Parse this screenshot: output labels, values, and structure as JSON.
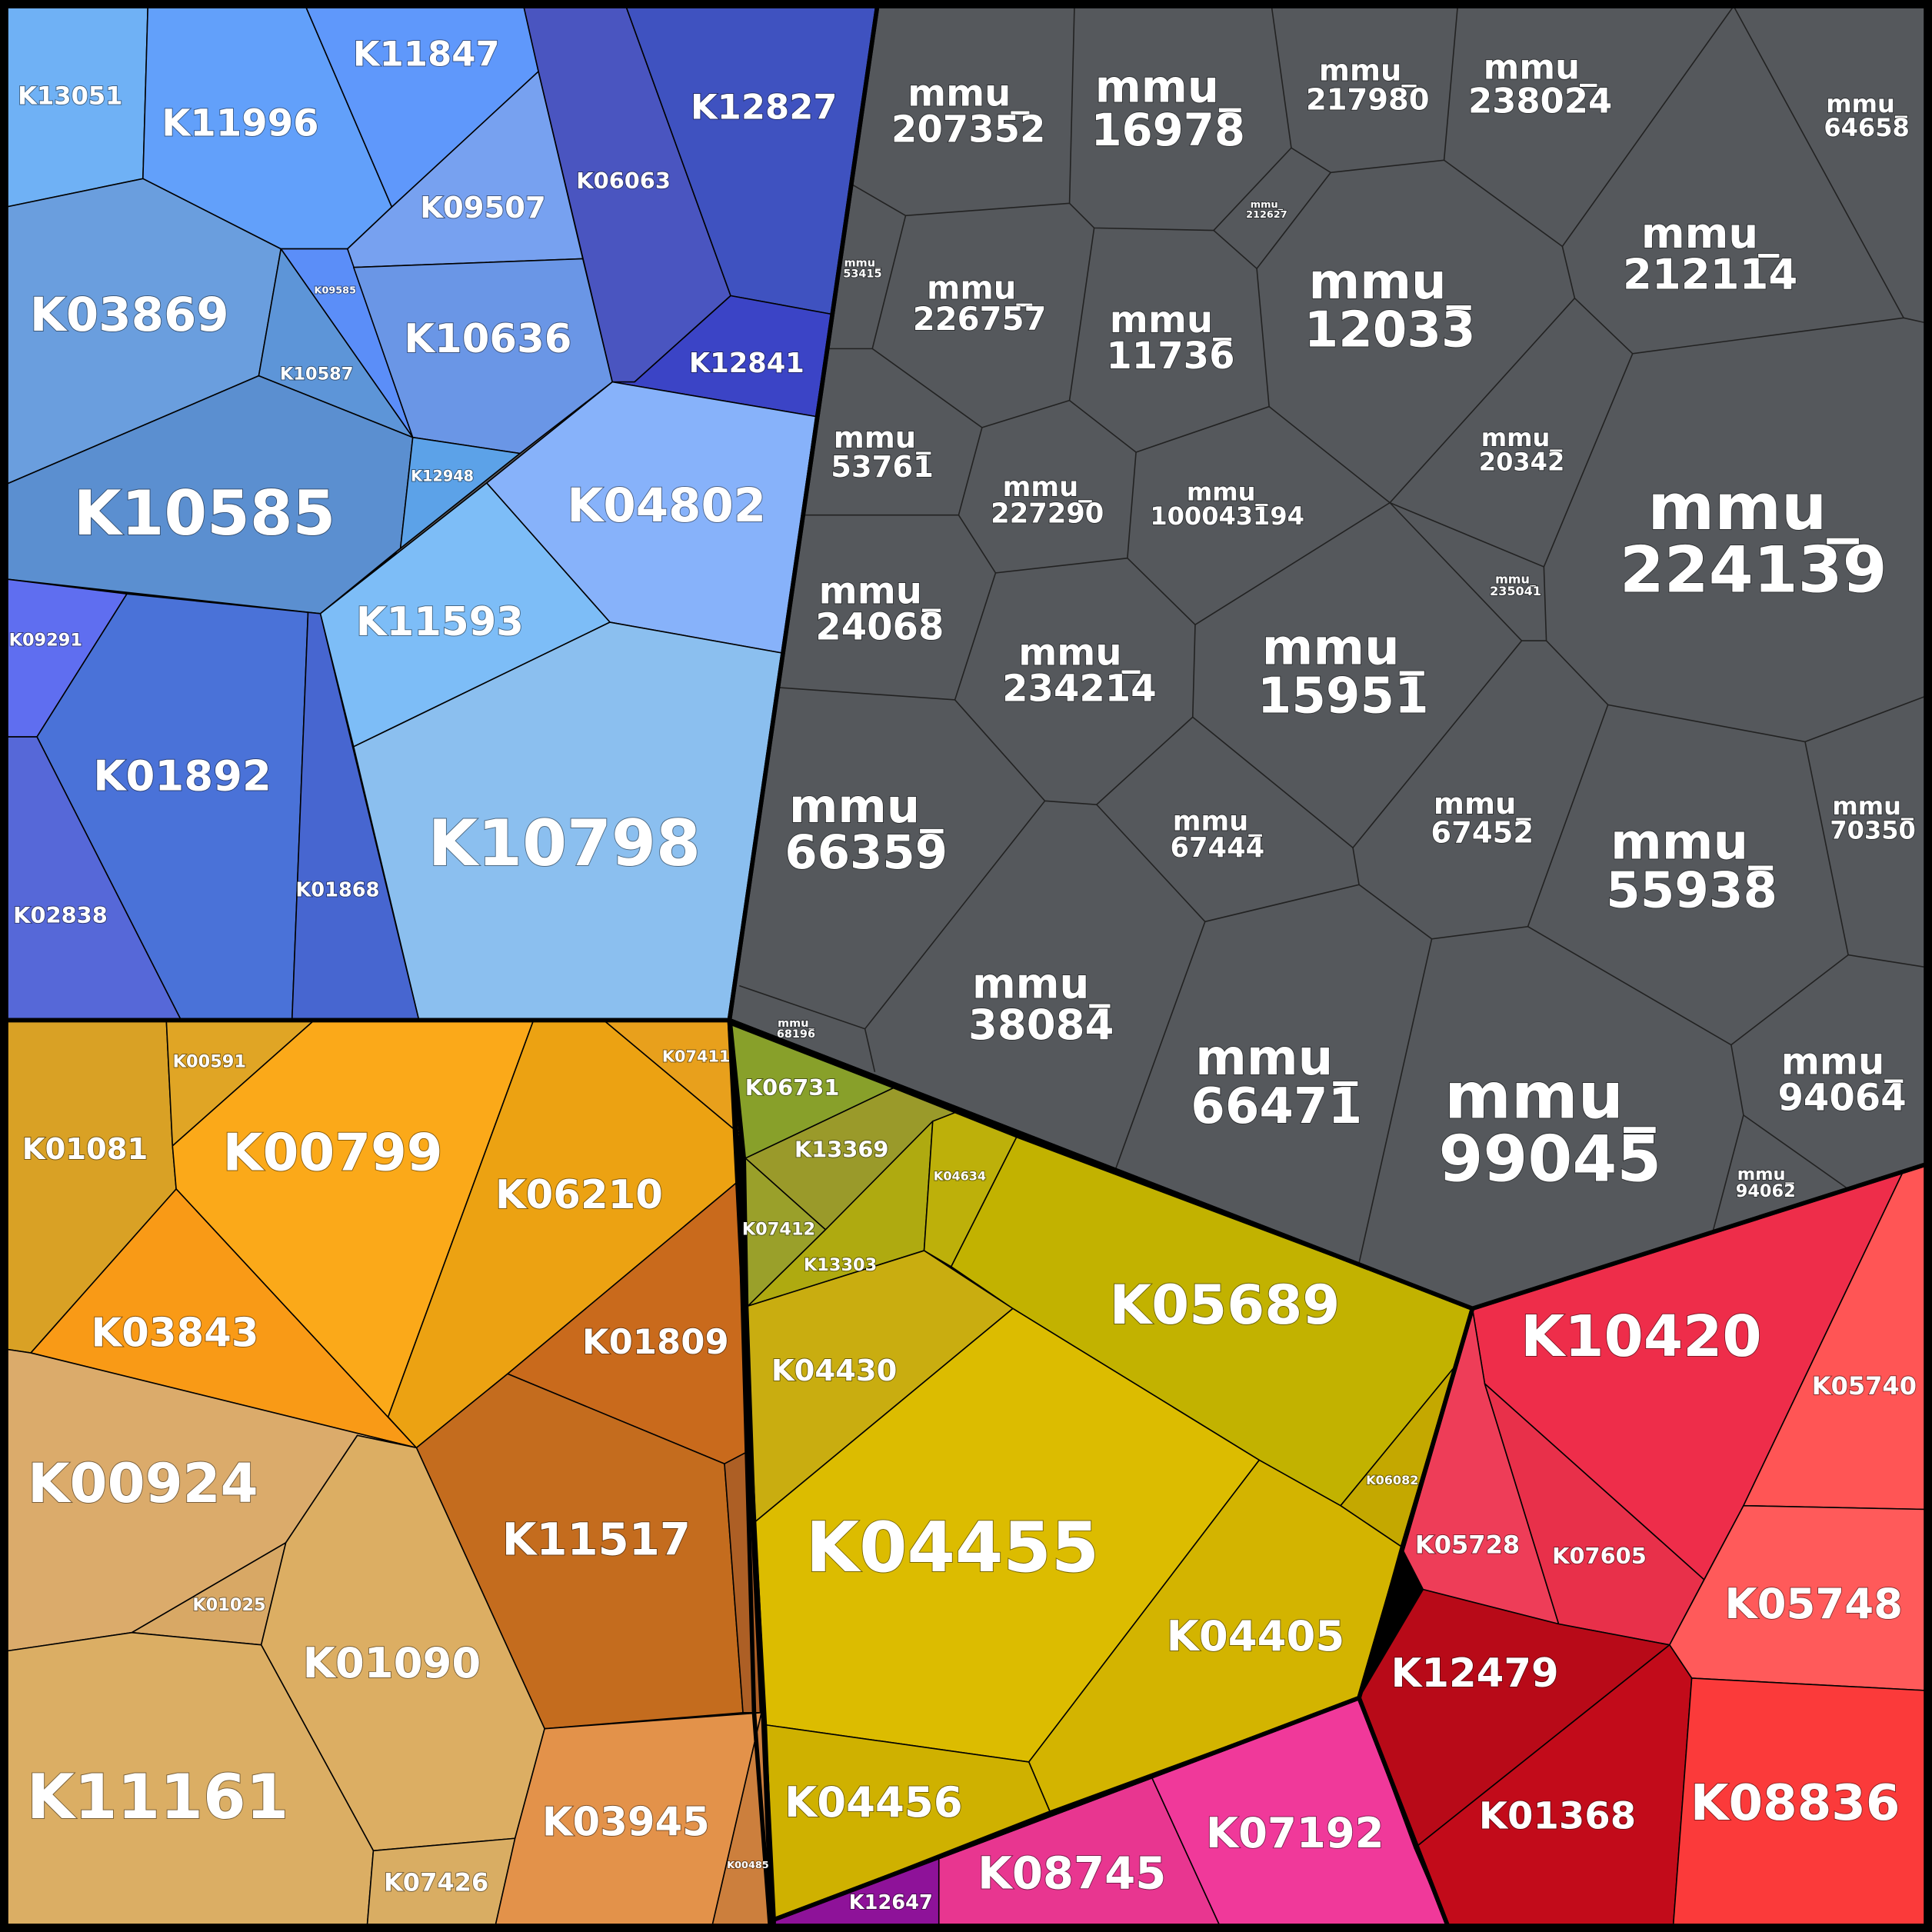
{
  "labels": [
    "mmu_207352",
    "mmu_16978",
    "mmu_217980",
    "mmu_238024",
    "mmu_64658",
    "mmu_212627",
    "mmu_53415",
    "mmu_226757",
    "mmu_11736",
    "mmu_12033",
    "mmu_212114",
    "mmu_53761",
    "mmu_227290",
    "mmu_100043194",
    "mmu_20342",
    "mmu_224139",
    "mmu_235041",
    "mmu_24068",
    "mmu_234214",
    "mmu_15951",
    "mmu_66359",
    "mmu_67444",
    "mmu_67452",
    "mmu_55938",
    "mmu_70350",
    "mmu_38084",
    "mmu_68196",
    "mmu_66471",
    "mmu_99045",
    "mmu_94064",
    "mmu_94062",
    "K13051",
    "K11996",
    "K11847",
    "K09507",
    "K03869",
    "K09585",
    "K10587",
    "K10636",
    "K10585",
    "K12948",
    "K06063",
    "K12827",
    "K12841",
    "K04802",
    "K11593",
    "K10798",
    "K09291",
    "K01892",
    "K01868",
    "K02838",
    "K00591",
    "K07411",
    "K01081",
    "K00799",
    "K06210",
    "K03843",
    "K01809",
    "K11517",
    "K00924",
    "K01025",
    "K01090",
    "K11161",
    "K07426",
    "K03945",
    "K00485",
    "K06731",
    "K13369",
    "K07412",
    "K13303",
    "K04634",
    "K05689",
    "K04430",
    "K06082",
    "K04455",
    "K04405",
    "K04456",
    "K12647",
    "K08745",
    "K07192",
    "K10420",
    "K05740",
    "K05728",
    "K07605",
    "K05748",
    "K12479",
    "K01368",
    "K08836"
  ]
}
